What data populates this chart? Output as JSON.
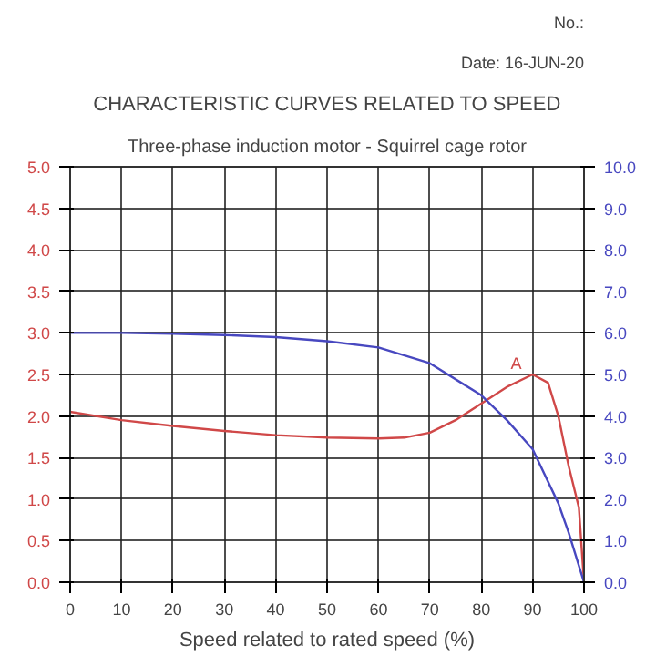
{
  "chart_data": {
    "type": "line",
    "title": "CHARACTERISTIC CURVES RELATED TO SPEED",
    "subtitle": "Three-phase induction motor - Squirrel cage rotor",
    "xlabel": "Speed related to rated speed (%)",
    "annotations": [
      "No.:",
      "Date: 16-JUN-20",
      {
        "text": "A",
        "x": 90,
        "y": 2.5
      }
    ],
    "xlim": [
      0,
      100
    ],
    "xticks": [
      0,
      10,
      20,
      30,
      40,
      50,
      60,
      70,
      80,
      90,
      100
    ],
    "ylim": [
      0,
      5
    ],
    "yticks": [
      {
        "value": 0,
        "label": "0.0"
      },
      0.5,
      {
        "value": 1,
        "label": "1.0"
      },
      1.5,
      {
        "value": 2,
        "label": "2.0"
      },
      2.5,
      {
        "value": 3,
        "label": "3.0"
      },
      3.5,
      {
        "value": 4,
        "label": "4.0"
      },
      4.5,
      {
        "value": 5,
        "label": "5.0"
      }
    ],
    "y2lim": [
      0,
      10
    ],
    "y2ticks": [
      {
        "value": 0,
        "label": "0.0"
      },
      {
        "value": 1,
        "label": "1.0"
      },
      {
        "value": 2,
        "label": "2.0"
      },
      {
        "value": 3,
        "label": "3.0"
      },
      {
        "value": 4,
        "label": "4.0"
      },
      {
        "value": 5,
        "label": "5.0"
      },
      {
        "value": 6,
        "label": "6.0"
      },
      {
        "value": 7,
        "label": "7.0"
      },
      {
        "value": 8,
        "label": "8.0"
      },
      {
        "value": 9,
        "label": "9.0"
      },
      {
        "value": 10,
        "label": "10.0"
      }
    ],
    "grid": true,
    "line_style": "solid",
    "series": [
      {
        "color": "#d04848",
        "x": [
          0,
          10,
          20,
          30,
          40,
          50,
          60,
          65,
          70,
          75,
          80,
          85,
          90,
          93,
          95,
          97,
          99,
          100
        ],
        "values": [
          2.05,
          1.95,
          1.88,
          1.82,
          1.77,
          1.74,
          1.73,
          1.74,
          1.8,
          1.95,
          2.15,
          2.35,
          2.5,
          2.4,
          2.0,
          1.4,
          0.9,
          0
        ]
      },
      {
        "color": "#4848c0",
        "axis": "y2",
        "x": [
          0,
          10,
          20,
          30,
          40,
          50,
          60,
          70,
          80,
          85,
          90,
          95,
          97,
          100
        ],
        "values": [
          6.0,
          6.0,
          5.98,
          5.95,
          5.9,
          5.8,
          5.65,
          5.27,
          4.5,
          3.9,
          3.2,
          1.9,
          1.2,
          0
        ]
      }
    ]
  }
}
